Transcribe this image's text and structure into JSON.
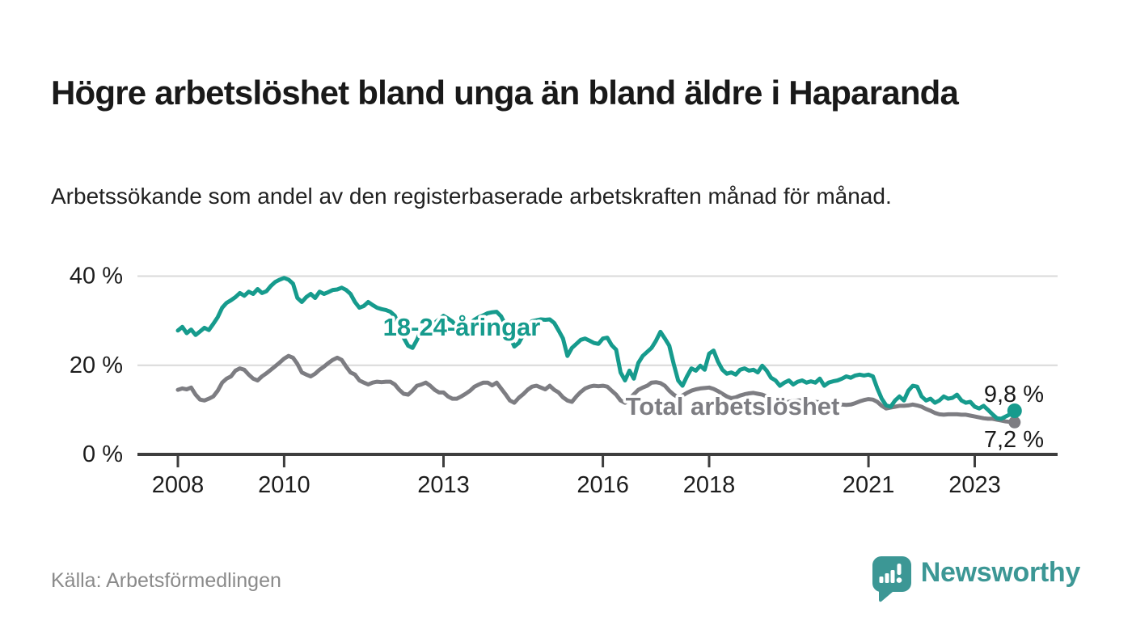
{
  "header": {
    "title": "Högre arbetslöshet bland unga än bland äldre i Haparanda",
    "subtitle": "Arbetssökande som andel av den registerbaserade arbetskraften månad för månad."
  },
  "footer": {
    "source": "Källa: Arbetsförmedlingen",
    "logo_text": "Newsworthy",
    "logo_icon": "newsworthy-speech-bubble-bar-chart-icon",
    "logo_color": "#3c9795"
  },
  "chart_data": {
    "type": "line",
    "title": "Högre arbetslöshet bland unga än bland äldre i Haparanda",
    "xlabel": "",
    "ylabel": "",
    "ylim": [
      0,
      44
    ],
    "grid": "horizontal",
    "legend_position": "inline-labels",
    "x_time": {
      "start": "2008-01",
      "end": "2023-10",
      "interval": "monthly"
    },
    "yticks": [
      {
        "value": 0,
        "label": "0 %"
      },
      {
        "value": 20,
        "label": "20 %"
      },
      {
        "value": 40,
        "label": "40 %"
      }
    ],
    "xticks": [
      {
        "value": 2008,
        "label": "2008"
      },
      {
        "value": 2010,
        "label": "2010"
      },
      {
        "value": 2013,
        "label": "2013"
      },
      {
        "value": 2016,
        "label": "2016"
      },
      {
        "value": 2018,
        "label": "2018"
      },
      {
        "value": 2021,
        "label": "2021"
      },
      {
        "value": 2023,
        "label": "2023"
      }
    ],
    "series": [
      {
        "name": "Total arbetslöshet",
        "color": "#7d7d82",
        "end_label": "7,2 %",
        "end_value": 7.2,
        "values": [
          14.5,
          14.8,
          14.6,
          15.0,
          13.4,
          12.3,
          12.1,
          12.5,
          13.0,
          14.3,
          16.1,
          17.0,
          17.5,
          18.8,
          19.3,
          19.0,
          17.9,
          17.0,
          16.6,
          17.5,
          18.2,
          19.0,
          19.8,
          20.6,
          21.5,
          22.1,
          21.7,
          20.3,
          18.4,
          17.9,
          17.5,
          18.1,
          19.0,
          19.7,
          20.5,
          21.2,
          21.7,
          21.2,
          19.7,
          18.4,
          17.9,
          16.6,
          16.1,
          15.7,
          16.1,
          16.3,
          16.2,
          16.3,
          16.3,
          15.7,
          14.5,
          13.6,
          13.4,
          14.3,
          15.4,
          15.7,
          16.1,
          15.4,
          14.5,
          13.9,
          13.9,
          13.0,
          12.5,
          12.5,
          13.0,
          13.6,
          14.3,
          15.2,
          15.7,
          16.1,
          16.1,
          15.5,
          16.1,
          14.8,
          13.5,
          12.1,
          11.6,
          12.7,
          13.5,
          14.5,
          15.2,
          15.4,
          15.0,
          14.6,
          15.4,
          14.5,
          13.9,
          12.8,
          12.1,
          11.8,
          13.0,
          14.0,
          14.8,
          15.2,
          15.4,
          15.3,
          15.4,
          15.2,
          14.3,
          13.4,
          12.1,
          11.6,
          12.5,
          13.5,
          14.5,
          15.0,
          15.4,
          16.1,
          16.2,
          16.0,
          15.4,
          14.3,
          13.4,
          12.8,
          13.2,
          13.8,
          14.3,
          14.6,
          14.8,
          14.9,
          15.0,
          14.7,
          14.2,
          13.6,
          13.0,
          12.6,
          12.8,
          13.2,
          13.5,
          13.7,
          13.8,
          13.6,
          13.4,
          13.0,
          12.5,
          12.1,
          11.8,
          11.6,
          11.8,
          12.0,
          12.1,
          12.1,
          12.0,
          11.9,
          11.8,
          11.7,
          11.6,
          11.5,
          11.4,
          11.3,
          11.2,
          11.1,
          11.2,
          11.5,
          11.9,
          12.2,
          12.4,
          12.3,
          11.8,
          10.9,
          10.3,
          10.5,
          10.7,
          10.9,
          10.9,
          11.0,
          11.2,
          11.0,
          10.7,
          10.2,
          9.8,
          9.3,
          9.0,
          8.9,
          9.0,
          9.0,
          9.0,
          8.9,
          8.9,
          8.7,
          8.5,
          8.3,
          8.1,
          8.0,
          8.0,
          7.8,
          7.6,
          7.4,
          7.3,
          7.2
        ]
      },
      {
        "name": "18-24-åringar",
        "color": "#169b8d",
        "end_label": "9,8 %",
        "end_value": 9.8,
        "values": [
          27.8,
          28.6,
          27.2,
          28.0,
          26.8,
          27.6,
          28.4,
          27.9,
          29.3,
          30.8,
          32.9,
          34.0,
          34.6,
          35.3,
          36.2,
          35.6,
          36.5,
          36.0,
          37.1,
          36.2,
          36.6,
          37.8,
          38.7,
          39.2,
          39.6,
          39.2,
          38.3,
          35.1,
          34.2,
          35.3,
          36.0,
          35.1,
          36.5,
          36.0,
          36.4,
          36.9,
          37.0,
          37.4,
          36.9,
          36.0,
          34.2,
          32.9,
          33.3,
          34.2,
          33.5,
          32.9,
          32.6,
          32.4,
          32.0,
          31.1,
          28.7,
          26.2,
          24.4,
          23.9,
          25.7,
          28.0,
          28.9,
          28.4,
          29.5,
          30.3,
          31.1,
          30.5,
          29.8,
          28.6,
          27.5,
          28.2,
          29.4,
          30.2,
          30.8,
          31.2,
          31.7,
          31.9,
          32.0,
          31.0,
          29.0,
          26.5,
          24.2,
          25.0,
          26.8,
          28.4,
          29.9,
          30.1,
          30.3,
          30.2,
          30.3,
          29.5,
          27.8,
          26.0,
          22.1,
          23.9,
          24.8,
          25.7,
          26.0,
          25.5,
          25.0,
          24.8,
          26.0,
          26.2,
          24.5,
          23.5,
          18.4,
          16.6,
          18.8,
          17.0,
          20.5,
          22.1,
          23.0,
          23.9,
          25.5,
          27.5,
          26.0,
          24.4,
          20.3,
          16.6,
          15.4,
          17.5,
          19.3,
          18.8,
          19.9,
          19.0,
          22.6,
          23.3,
          20.8,
          19.0,
          18.1,
          18.4,
          17.9,
          19.0,
          19.3,
          18.8,
          19.0,
          18.4,
          19.9,
          18.8,
          17.2,
          16.6,
          15.4,
          16.1,
          16.6,
          15.7,
          16.3,
          16.6,
          16.1,
          16.4,
          16.1,
          17.0,
          15.4,
          16.1,
          16.4,
          16.6,
          17.0,
          17.5,
          17.2,
          17.7,
          17.9,
          17.7,
          17.9,
          17.5,
          14.8,
          12.5,
          11.0,
          10.7,
          12.1,
          13.0,
          12.1,
          14.3,
          15.4,
          15.2,
          13.0,
          12.1,
          12.5,
          11.6,
          12.1,
          13.0,
          12.5,
          12.7,
          13.4,
          12.1,
          11.6,
          11.8,
          10.7,
          10.3,
          10.9,
          10.0,
          9.0,
          8.1,
          8.0,
          8.5,
          9.0,
          9.8
        ]
      }
    ],
    "colors": {
      "grid": "#d9d9d9",
      "axis": "#3e3e3e",
      "tick_label": "#1d1d1d",
      "end_label": "#191919"
    }
  }
}
